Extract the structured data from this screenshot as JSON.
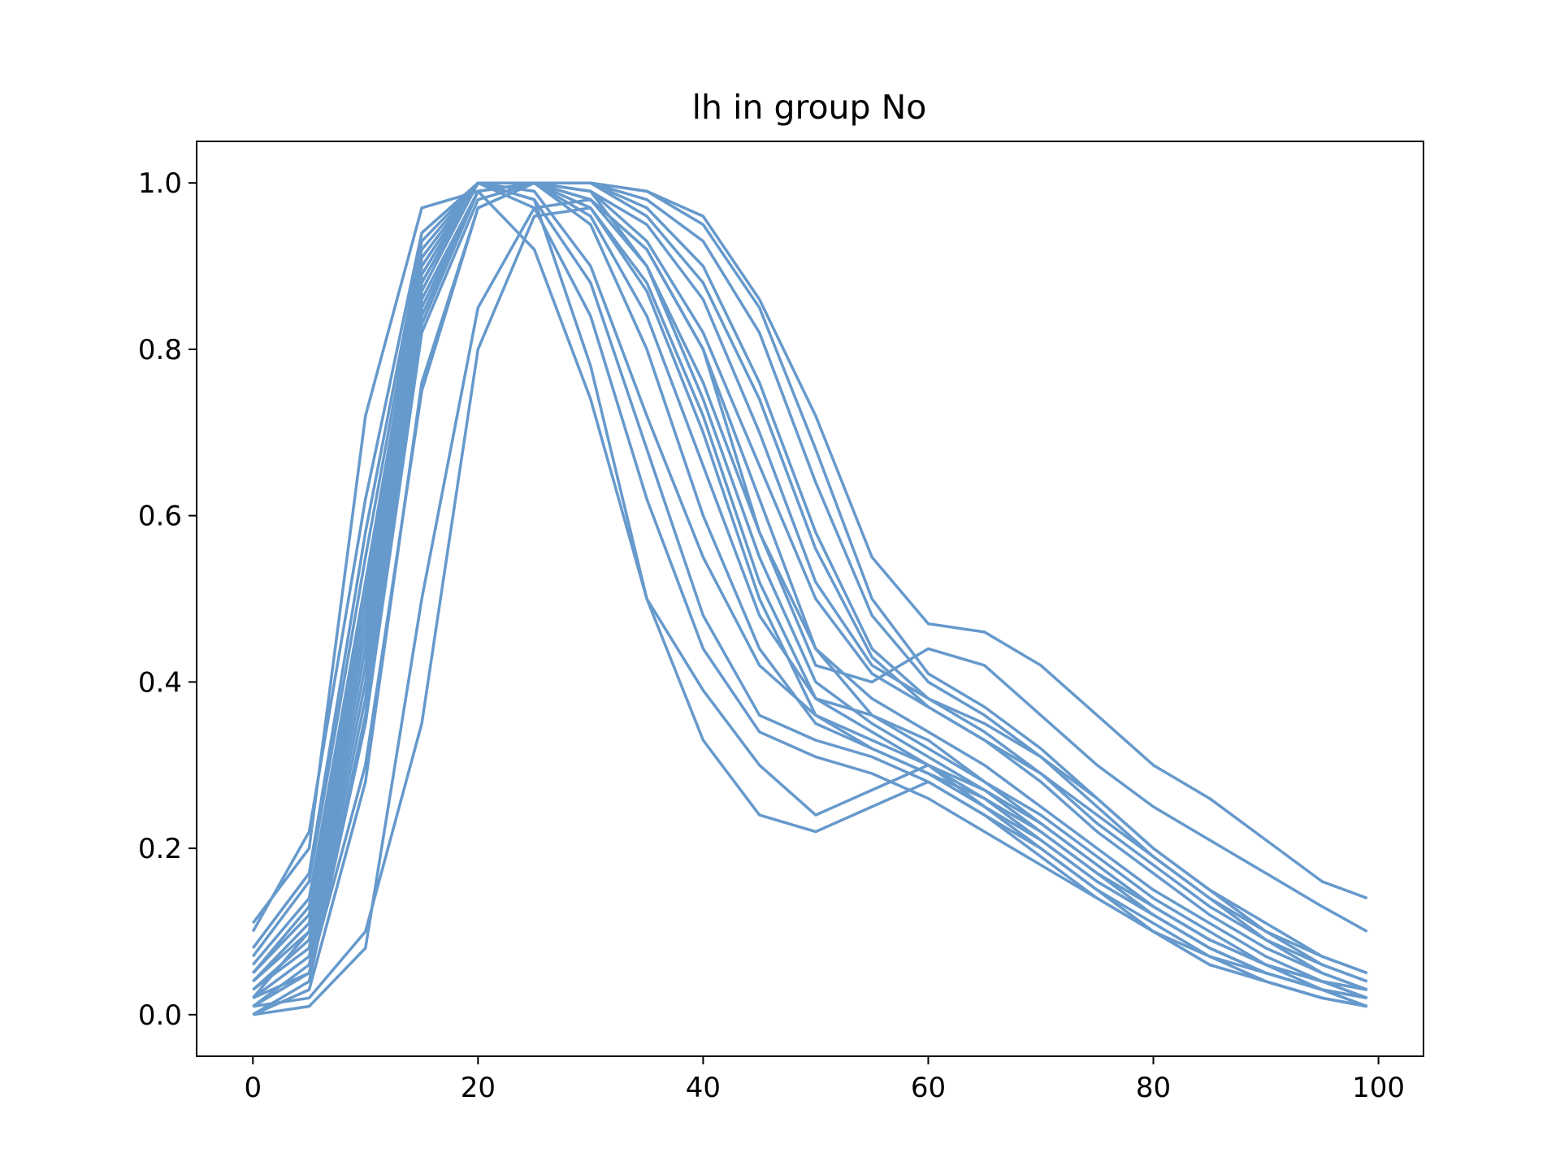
{
  "chart_data": {
    "type": "line",
    "title": "lh in group No",
    "xlabel": "",
    "ylabel": "",
    "xlim": [
      -5,
      104
    ],
    "ylim": [
      -0.05,
      1.05
    ],
    "x_ticks": [
      0,
      20,
      40,
      60,
      80,
      100
    ],
    "x_tick_labels": [
      "0",
      "20",
      "40",
      "60",
      "80",
      "100"
    ],
    "y_ticks": [
      0.0,
      0.2,
      0.4,
      0.6,
      0.8,
      1.0
    ],
    "y_tick_labels": [
      "0.0",
      "0.2",
      "0.4",
      "0.6",
      "0.8",
      "1.0"
    ],
    "grid": false,
    "legend": "none",
    "line_color": "#6699cc",
    "x": [
      0,
      5,
      10,
      15,
      20,
      25,
      30,
      35,
      40,
      45,
      50,
      55,
      60,
      65,
      70,
      75,
      80,
      85,
      90,
      95,
      99
    ],
    "series": [
      {
        "values": [
          0.11,
          0.2,
          0.72,
          0.97,
          0.99,
          0.92,
          0.74,
          0.5,
          0.33,
          0.24,
          0.22,
          0.25,
          0.28,
          0.24,
          0.19,
          0.14,
          0.1,
          0.07,
          0.05,
          0.03,
          0.01
        ]
      },
      {
        "values": [
          0.1,
          0.22,
          0.62,
          0.94,
          1.0,
          0.98,
          0.78,
          0.5,
          0.39,
          0.3,
          0.24,
          0.27,
          0.3,
          0.25,
          0.2,
          0.15,
          0.1,
          0.06,
          0.04,
          0.02,
          0.01
        ]
      },
      {
        "values": [
          0.0,
          0.01,
          0.08,
          0.5,
          0.85,
          0.97,
          0.98,
          0.92,
          0.8,
          0.58,
          0.42,
          0.4,
          0.44,
          0.42,
          0.36,
          0.3,
          0.25,
          0.21,
          0.17,
          0.13,
          0.1
        ]
      },
      {
        "values": [
          0.01,
          0.02,
          0.1,
          0.35,
          0.8,
          0.96,
          0.97,
          0.88,
          0.72,
          0.52,
          0.38,
          0.36,
          0.33,
          0.28,
          0.23,
          0.18,
          0.13,
          0.09,
          0.06,
          0.04,
          0.03
        ]
      },
      {
        "values": [
          0.02,
          0.05,
          0.3,
          0.75,
          0.97,
          1.0,
          1.0,
          0.99,
          0.96,
          0.86,
          0.72,
          0.55,
          0.47,
          0.46,
          0.42,
          0.36,
          0.3,
          0.26,
          0.21,
          0.16,
          0.14
        ]
      },
      {
        "values": [
          0.05,
          0.12,
          0.5,
          0.9,
          1.0,
          1.0,
          0.98,
          0.92,
          0.8,
          0.62,
          0.44,
          0.36,
          0.32,
          0.28,
          0.24,
          0.19,
          0.14,
          0.1,
          0.06,
          0.04,
          0.02
        ]
      },
      {
        "values": [
          0.03,
          0.08,
          0.42,
          0.86,
          0.99,
          1.0,
          0.96,
          0.84,
          0.66,
          0.48,
          0.38,
          0.34,
          0.3,
          0.26,
          0.21,
          0.16,
          0.12,
          0.08,
          0.05,
          0.03,
          0.02
        ]
      },
      {
        "values": [
          0.0,
          0.04,
          0.35,
          0.82,
          0.98,
          1.0,
          1.0,
          0.97,
          0.9,
          0.76,
          0.58,
          0.44,
          0.38,
          0.34,
          0.29,
          0.24,
          0.19,
          0.14,
          0.1,
          0.07,
          0.05
        ]
      },
      {
        "values": [
          0.07,
          0.16,
          0.55,
          0.92,
          1.0,
          0.99,
          0.9,
          0.72,
          0.55,
          0.42,
          0.36,
          0.33,
          0.3,
          0.27,
          0.23,
          0.18,
          0.13,
          0.09,
          0.06,
          0.03,
          0.01
        ]
      },
      {
        "values": [
          0.02,
          0.1,
          0.46,
          0.88,
          1.0,
          1.0,
          0.99,
          0.95,
          0.86,
          0.7,
          0.52,
          0.42,
          0.38,
          0.35,
          0.31,
          0.26,
          0.2,
          0.15,
          0.1,
          0.06,
          0.04
        ]
      },
      {
        "values": [
          0.01,
          0.06,
          0.38,
          0.84,
          0.99,
          1.0,
          0.97,
          0.87,
          0.7,
          0.5,
          0.36,
          0.32,
          0.29,
          0.26,
          0.22,
          0.17,
          0.12,
          0.08,
          0.05,
          0.03,
          0.02
        ]
      },
      {
        "values": [
          0.04,
          0.11,
          0.48,
          0.89,
          1.0,
          1.0,
          0.99,
          0.93,
          0.82,
          0.66,
          0.5,
          0.41,
          0.37,
          0.33,
          0.28,
          0.22,
          0.17,
          0.12,
          0.08,
          0.05,
          0.03
        ]
      },
      {
        "values": [
          0.06,
          0.14,
          0.52,
          0.91,
          1.0,
          0.98,
          0.88,
          0.68,
          0.48,
          0.36,
          0.33,
          0.31,
          0.28,
          0.24,
          0.2,
          0.15,
          0.11,
          0.07,
          0.04,
          0.02,
          0.01
        ]
      },
      {
        "values": [
          0.03,
          0.09,
          0.44,
          0.87,
          1.0,
          1.0,
          1.0,
          0.98,
          0.93,
          0.82,
          0.64,
          0.48,
          0.4,
          0.36,
          0.31,
          0.25,
          0.19,
          0.14,
          0.09,
          0.05,
          0.03
        ]
      },
      {
        "values": [
          0.0,
          0.03,
          0.28,
          0.76,
          0.97,
          1.0,
          0.99,
          0.9,
          0.76,
          0.58,
          0.44,
          0.38,
          0.34,
          0.3,
          0.25,
          0.2,
          0.15,
          0.11,
          0.07,
          0.04,
          0.03
        ]
      },
      {
        "values": [
          0.05,
          0.13,
          0.5,
          0.9,
          1.0,
          1.0,
          0.95,
          0.8,
          0.6,
          0.44,
          0.35,
          0.32,
          0.29,
          0.25,
          0.21,
          0.16,
          0.12,
          0.08,
          0.05,
          0.03,
          0.02
        ]
      },
      {
        "values": [
          0.02,
          0.07,
          0.4,
          0.85,
          0.99,
          1.0,
          1.0,
          0.96,
          0.88,
          0.74,
          0.56,
          0.43,
          0.37,
          0.33,
          0.29,
          0.23,
          0.18,
          0.13,
          0.09,
          0.06,
          0.04
        ]
      },
      {
        "values": [
          0.08,
          0.17,
          0.58,
          0.93,
          1.0,
          0.97,
          0.84,
          0.62,
          0.44,
          0.34,
          0.31,
          0.29,
          0.26,
          0.22,
          0.18,
          0.14,
          0.1,
          0.06,
          0.04,
          0.02,
          0.01
        ]
      },
      {
        "values": [
          0.01,
          0.05,
          0.36,
          0.83,
          0.99,
          1.0,
          1.0,
          0.99,
          0.95,
          0.85,
          0.68,
          0.5,
          0.41,
          0.37,
          0.32,
          0.26,
          0.2,
          0.15,
          0.11,
          0.07,
          0.05
        ]
      },
      {
        "values": [
          0.04,
          0.1,
          0.46,
          0.88,
          1.0,
          1.0,
          0.98,
          0.9,
          0.74,
          0.55,
          0.4,
          0.35,
          0.31,
          0.27,
          0.22,
          0.17,
          0.13,
          0.09,
          0.06,
          0.04,
          0.02
        ]
      }
    ]
  }
}
